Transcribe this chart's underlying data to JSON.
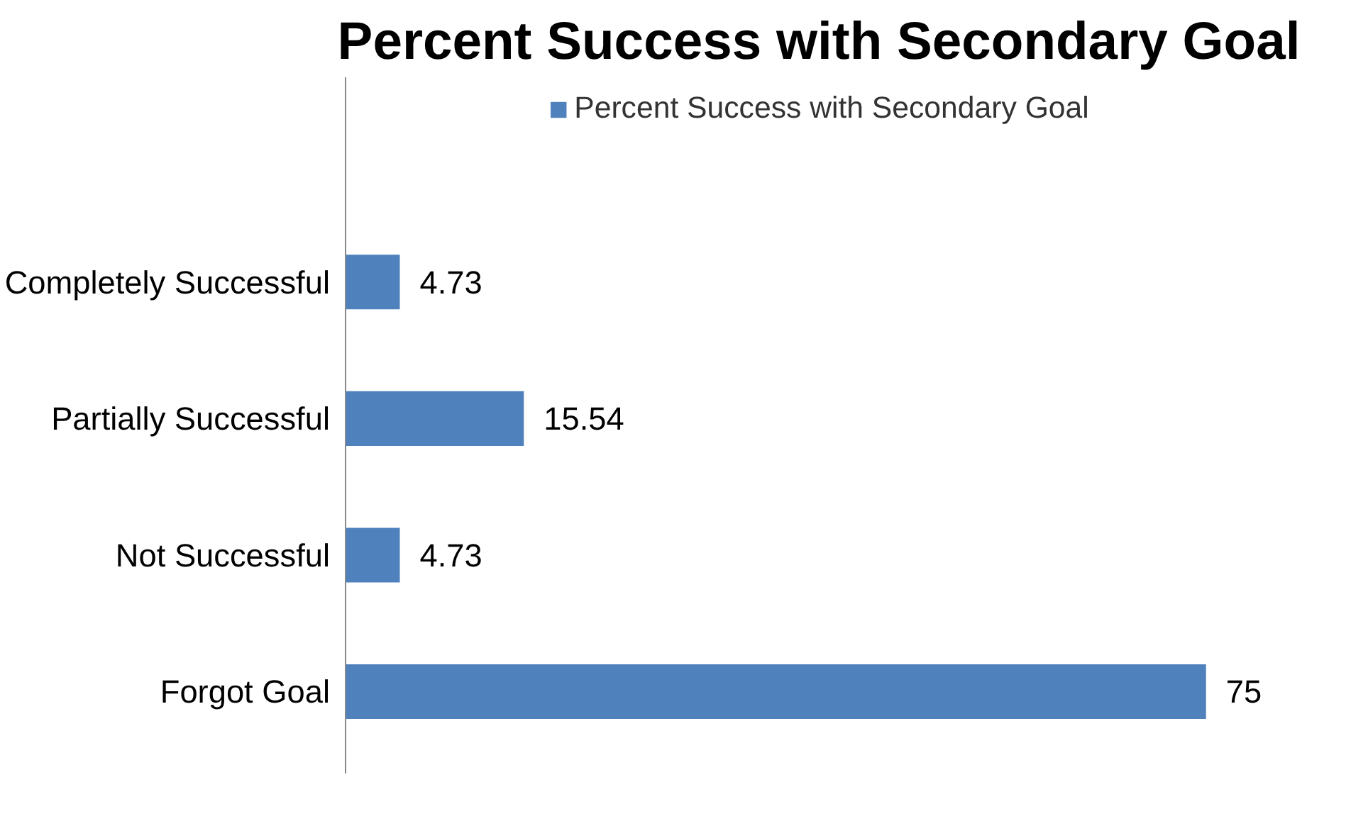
{
  "chart_data": {
    "type": "bar",
    "orientation": "horizontal",
    "title": "Percent Success with Secondary Goal",
    "categories": [
      "Completely Successful",
      "Partially Successful",
      "Not Successful",
      "Forgot Goal"
    ],
    "series": [
      {
        "name": "Percent Success with Secondary Goal",
        "color": "#4f81bd",
        "values": [
          4.73,
          15.54,
          4.73,
          75
        ]
      }
    ],
    "data_labels": true,
    "legend": "top",
    "grid": false,
    "tick_labels": "y"
  }
}
